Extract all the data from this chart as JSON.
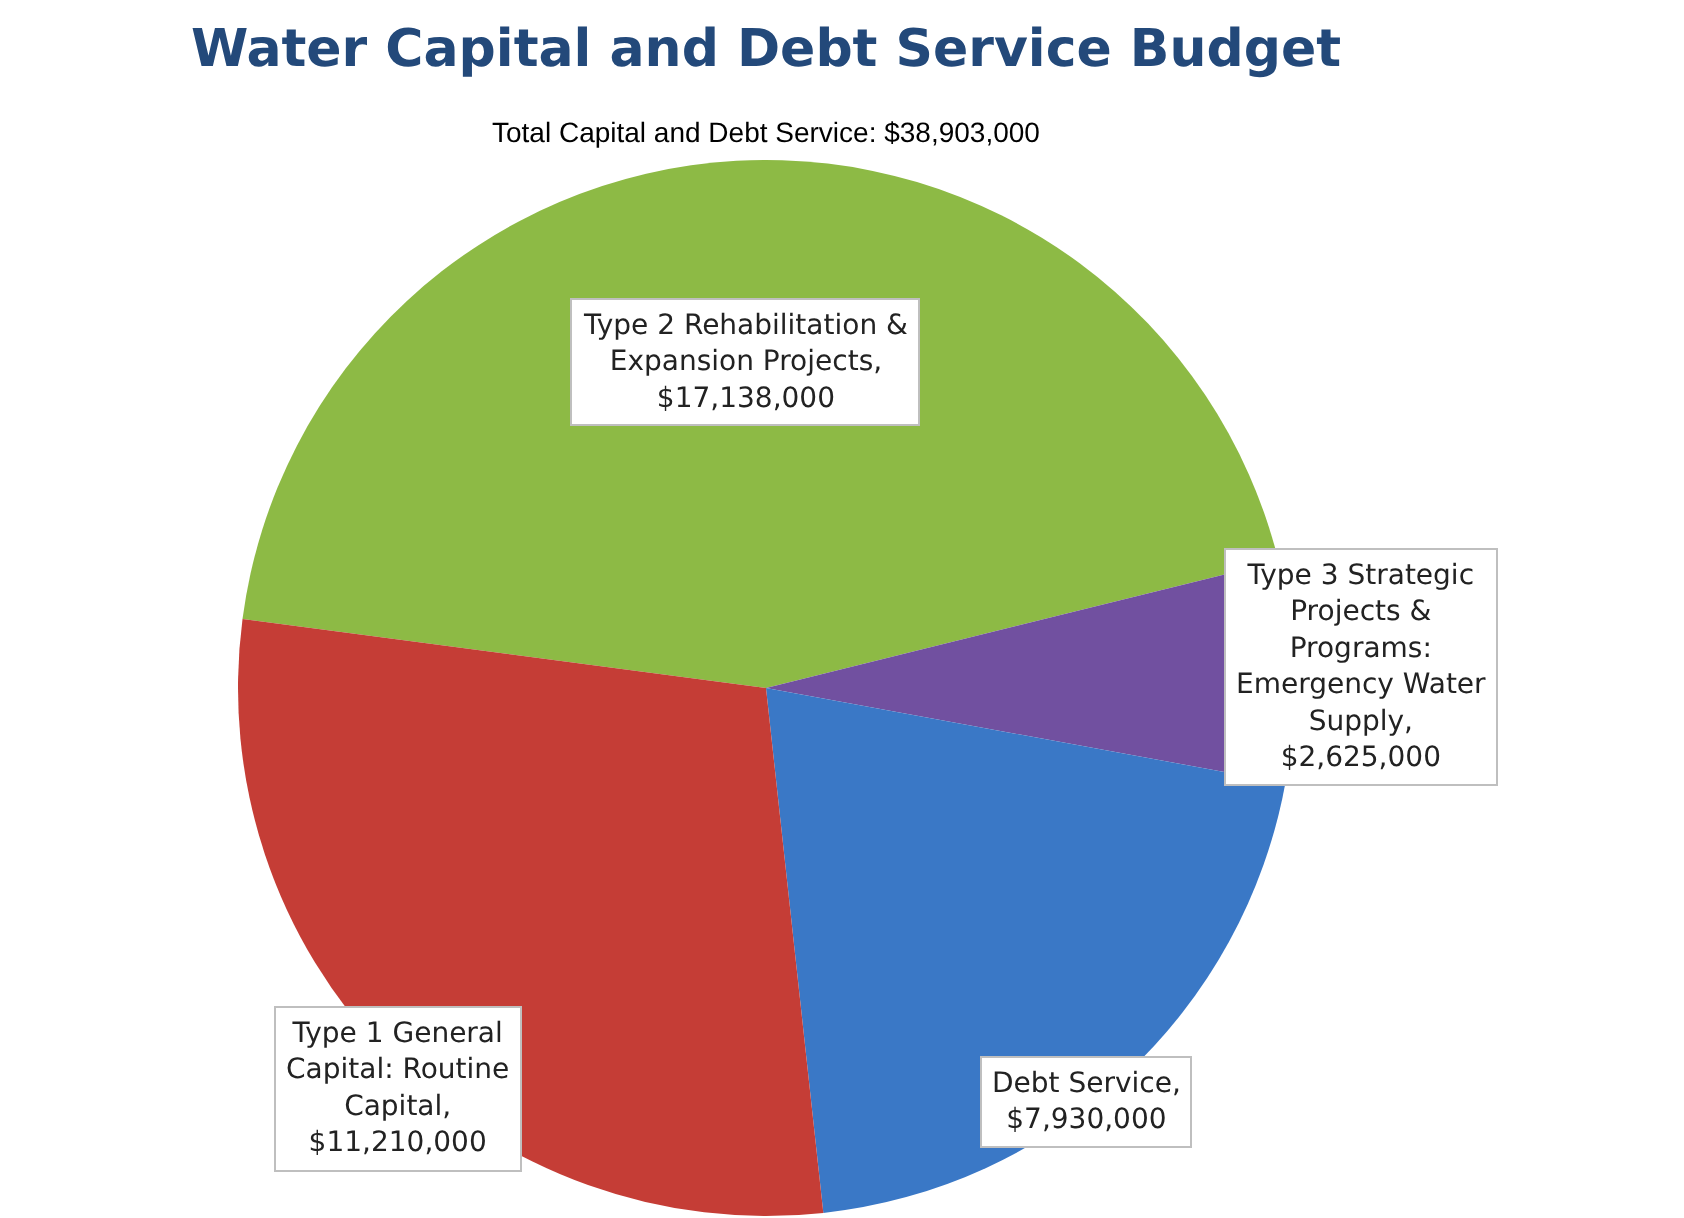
{
  "chart_data": {
    "type": "pie",
    "title": "Water Capital and Debt Service Budget",
    "subtitle": "Total Capital and Debt Service: $38,903,000",
    "categories": [
      "Type 2 Rehabilitation & Expansion Projects, $17,138,000",
      "Type 3 Strategic Projects & Programs: Emergency Water Supply, $2,625,000",
      "Debt Service, $7,930,000",
      "Type 1 General Capital: Routine Capital, $11,210,000"
    ],
    "values": [
      17138000,
      2625000,
      7930000,
      11210000
    ],
    "colors": [
      "#8dba45",
      "#7150a0",
      "#3a78c6",
      "#c53d36"
    ],
    "legend": false
  }
}
